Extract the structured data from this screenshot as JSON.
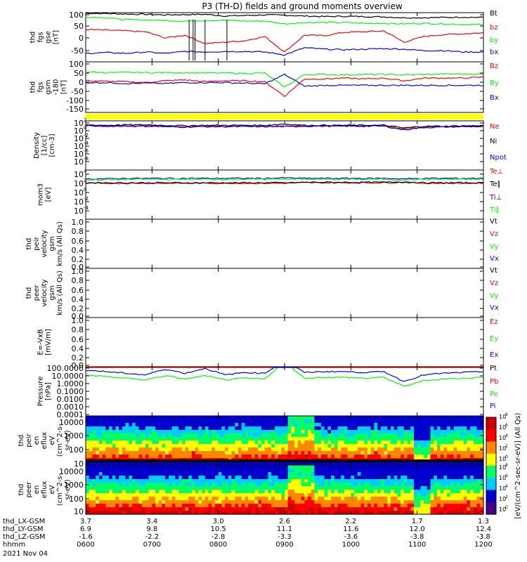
{
  "title": "P3 (TH-D) fields and ground moments overview",
  "colors": {
    "black": "#000000",
    "red": "#ff0000",
    "green": "#00ff00",
    "blue": "#0000ff",
    "yellow": "#ffff00"
  },
  "xaxis": {
    "ticks": [
      {
        "lx": "3.7",
        "ly": "6.9",
        "lz": "-1.6",
        "hhmm": "0600"
      },
      {
        "lx": "3.4",
        "ly": "9.8",
        "lz": "-2.2",
        "hhmm": "0700"
      },
      {
        "lx": "3.0",
        "ly": "10.5",
        "lz": "-2.8",
        "hhmm": "0800"
      },
      {
        "lx": "2.6",
        "ly": "11.1",
        "lz": "-3.3",
        "hhmm": "0900"
      },
      {
        "lx": "2.2",
        "ly": "11.6",
        "lz": "-3.6",
        "hhmm": "1000"
      },
      {
        "lx": "1.7",
        "ly": "12.0",
        "lz": "-3.8",
        "hhmm": "1100"
      },
      {
        "lx": "1.3",
        "ly": "12.4",
        "lz": "-3.8",
        "hhmm": "1200"
      }
    ],
    "row_labels": [
      "thd_LX-GSM",
      "thd_LY-GSM",
      "thd_LZ-GSM",
      "hhmm"
    ],
    "date": "2021 Nov 04"
  },
  "chart_data": [
    {
      "type": "line",
      "id": "fgs",
      "ylabel": [
        "thd",
        "fgs",
        "gse",
        "[nT]"
      ],
      "ticks": [
        "100",
        "50",
        "0",
        "-50"
      ],
      "ylim": [
        -75,
        100
      ],
      "series": [
        {
          "name": "Bt",
          "color": "black",
          "values": [
            98,
            97,
            95,
            94,
            92,
            93,
            94,
            88,
            90,
            92,
            91,
            88,
            86,
            87,
            86,
            85,
            82,
            82,
            83,
            84,
            83
          ]
        },
        {
          "name": "bz",
          "color": "red",
          "values": [
            40,
            38,
            35,
            32,
            10,
            20,
            -10,
            -5,
            0,
            15,
            -40,
            20,
            18,
            30,
            32,
            35,
            -5,
            15,
            22,
            25,
            28
          ]
        },
        {
          "name": "by",
          "color": "green",
          "values": [
            85,
            82,
            75,
            74,
            72,
            70,
            72,
            73,
            70,
            70,
            60,
            65,
            65,
            65,
            62,
            62,
            60,
            62,
            60,
            58,
            58
          ]
        },
        {
          "name": "bx",
          "color": "blue",
          "values": [
            -45,
            -42,
            -45,
            -40,
            -45,
            -38,
            -40,
            -38,
            -38,
            -40,
            -50,
            -25,
            -30,
            -32,
            -30,
            -28,
            -30,
            -35,
            -35,
            -40,
            -40
          ]
        }
      ],
      "spikes": [
        0.26,
        0.27,
        0.275,
        0.3,
        0.355
      ]
    },
    {
      "type": "line",
      "id": "fgs_gsm",
      "ylabel": [
        "thd",
        "fgs",
        "gsm",
        "-180"
      ],
      "unit": "[nT]",
      "ticks": [
        "100",
        "50",
        "0",
        "-50",
        "-100",
        "-150"
      ],
      "ylim": [
        -180,
        100
      ],
      "series": [
        {
          "name": "Bz",
          "color": "red",
          "values": [
            -5,
            -8,
            -10,
            -15,
            -5,
            0,
            -10,
            -5,
            -5,
            -10,
            -90,
            5,
            5,
            10,
            5,
            10,
            -5,
            10,
            10,
            10,
            15
          ]
        },
        {
          "name": "By",
          "color": "green",
          "values": [
            45,
            40,
            42,
            40,
            40,
            40,
            38,
            38,
            36,
            38,
            -40,
            30,
            30,
            28,
            30,
            30,
            28,
            30,
            32,
            32,
            32
          ]
        },
        {
          "name": "Bx",
          "color": "blue",
          "values": [
            -15,
            -15,
            -20,
            -18,
            -20,
            -15,
            -15,
            -15,
            -18,
            -22,
            30,
            -35,
            -30,
            -30,
            -30,
            -30,
            -30,
            -30,
            -30,
            -30,
            -30
          ]
        }
      ]
    },
    {
      "type": "line",
      "id": "density",
      "ylabel": [
        "Density",
        "[1/cc]",
        "[cm-3]"
      ],
      "ticks": [
        "10",
        "10",
        "10",
        "10",
        "10",
        "10"
      ],
      "tick_exp": [
        "2",
        "0",
        "-2",
        "-4",
        "-6",
        "-8"
      ],
      "series": [
        {
          "name": "Ne",
          "color": "red",
          "values": [
            2,
            1.8,
            1.9,
            1.9,
            1.8,
            1.7,
            1.8,
            1.8,
            1.8,
            1.8,
            1.8,
            1.9,
            1.9,
            1.9,
            1.9,
            1.9,
            1.2,
            1.6,
            1.7,
            1.8,
            1.8
          ]
        },
        {
          "name": "Ni",
          "color": "black",
          "values": [
            2.1,
            2,
            2.1,
            2.1,
            2,
            1.9,
            2,
            2,
            2,
            2,
            2.3,
            2,
            2,
            2,
            2,
            2,
            1.4,
            1.8,
            1.8,
            1.9,
            1.9
          ]
        },
        {
          "name": "Npot",
          "color": "blue",
          "values": [
            1.9,
            1.8,
            1.8,
            1.8,
            1.7,
            1.6,
            1.7,
            1.7,
            1.7,
            1.7,
            1.7,
            1.8,
            1.8,
            1.8,
            1.8,
            1.8,
            1,
            1.5,
            1.6,
            1.7,
            1.7
          ]
        }
      ]
    },
    {
      "type": "line",
      "id": "temp",
      "ylabel": [
        "mom3",
        "[eV]"
      ],
      "ticks": [
        "10",
        "10",
        "10",
        "10",
        "10"
      ],
      "tick_exp": [
        "4",
        "2",
        "0",
        "-2",
        "-4"
      ],
      "series": [
        {
          "name": "Te⊥",
          "color": "red",
          "values": [
            2.3,
            2.3,
            2.3,
            2.3,
            2.3,
            2.3,
            2.3,
            2.3,
            2.3,
            2.3,
            2.3,
            2.4,
            2.4,
            2.4,
            2.4,
            2.4,
            2.5,
            2.3,
            2.3,
            2.3,
            2.3
          ]
        },
        {
          "name": "Te∥",
          "color": "black",
          "values": [
            2.4,
            2.4,
            2.4,
            2.4,
            2.4,
            2.4,
            2.4,
            2.4,
            2.4,
            2.4,
            2.4,
            2.5,
            2.5,
            2.5,
            2.5,
            2.5,
            2.6,
            2.4,
            2.4,
            2.4,
            2.4
          ]
        },
        {
          "name": "Ti⊥",
          "color": "blue",
          "values": [
            3.2,
            3.2,
            3.3,
            3.3,
            3.3,
            3.3,
            3.3,
            3.3,
            3.3,
            3.3,
            3.4,
            3.3,
            3.3,
            3.3,
            3.3,
            3.3,
            3.2,
            3.3,
            3.3,
            3.3,
            3.3
          ]
        },
        {
          "name": "Ti∥",
          "color": "green",
          "values": [
            3.0,
            3.0,
            3.1,
            3.1,
            3.1,
            3.1,
            3.1,
            3.1,
            3.1,
            3.1,
            3.2,
            3.1,
            3.1,
            3.1,
            3.1,
            3.1,
            3.0,
            3.1,
            3.1,
            3.1,
            3.1
          ]
        }
      ]
    },
    {
      "type": "line",
      "id": "peir_vel",
      "ylabel": [
        "thd",
        "peir",
        "velocity",
        "gsm",
        "km/s (All Qs)"
      ],
      "ticks": [
        "1.0",
        "0.8",
        "0.6",
        "0.4",
        "0.2",
        "0.0"
      ],
      "series": [
        {
          "name": "Vt",
          "color": "black"
        },
        {
          "name": "Vz",
          "color": "red"
        },
        {
          "name": "Vy",
          "color": "green"
        },
        {
          "name": "Vx",
          "color": "blue"
        }
      ]
    },
    {
      "type": "line",
      "id": "peer_vel",
      "ylabel": [
        "thd",
        "peer",
        "velocity",
        "gsm",
        "km/s (All Qs)"
      ],
      "ticks": [
        "1.0",
        "0.8",
        "0.6",
        "0.4",
        "0.2",
        "0.0"
      ],
      "series": [
        {
          "name": "Vt",
          "color": "black"
        },
        {
          "name": "Vz",
          "color": "red"
        },
        {
          "name": "Vy",
          "color": "green"
        },
        {
          "name": "Vx",
          "color": "blue"
        }
      ]
    },
    {
      "type": "line",
      "id": "efield",
      "ylabel": [
        "E=-VxB",
        "[mV/m]"
      ],
      "ticks": [
        "1.0",
        "0.8",
        "0.6",
        "0.4",
        "0.2",
        "0.0"
      ],
      "series": [
        {
          "name": "Ez",
          "color": "red"
        },
        {
          "name": "Ey",
          "color": "green"
        },
        {
          "name": "Ex",
          "color": "blue"
        }
      ]
    },
    {
      "type": "line",
      "id": "pressure",
      "ylabel": [
        "Pressure",
        "[nPa]"
      ],
      "ticks": [
        "100.0000",
        "10.0000",
        "1.0000",
        "0.1000",
        "0.0100",
        "0.0010",
        "0.0001"
      ],
      "series": [
        {
          "name": "Pt",
          "color": "black",
          "values": [
            2.5,
            2.4,
            2.4,
            2.4,
            2.3,
            2.3,
            2.3,
            2.3,
            2.3,
            2.3,
            2.9,
            2.3,
            2.3,
            2.3,
            2.3,
            2.3,
            2.2,
            2.2,
            2.2,
            2.2,
            2.2
          ]
        },
        {
          "name": "Pb",
          "color": "red",
          "values": [
            2.4,
            2.3,
            2.3,
            2.2,
            2.2,
            2.2,
            2.2,
            2.2,
            2.2,
            2.2,
            2.5,
            2.2,
            2.2,
            2.2,
            2.2,
            2.2,
            2.1,
            2.1,
            2.1,
            2.1,
            2.1
          ]
        },
        {
          "name": "Pe",
          "color": "green",
          "values": [
            1.0,
            0.8,
            0.6,
            0.4,
            0.9,
            0.5,
            0.9,
            0.4,
            0.6,
            0.5,
            2.6,
            0.6,
            0.7,
            0.7,
            0.6,
            0.7,
            -0.4,
            0.3,
            0.5,
            0.6,
            0.7
          ]
        },
        {
          "name": "Pi",
          "color": "blue",
          "values": [
            1.6,
            1.4,
            1.2,
            1.0,
            1.7,
            1.2,
            1.8,
            1.0,
            1.3,
            1.2,
            2.7,
            1.3,
            1.4,
            1.4,
            1.3,
            1.4,
            0.2,
            1.0,
            1.2,
            1.3,
            1.4
          ]
        }
      ]
    },
    {
      "type": "heatmap",
      "id": "peir_spec",
      "ylabel": [
        "thd",
        "peir",
        "en",
        "eflux",
        "eV",
        "(cm^2-s-",
        "sr-eV)"
      ],
      "ticks": [
        "10000",
        "1000",
        "100",
        "10"
      ]
    },
    {
      "type": "heatmap",
      "id": "peer_spec",
      "ylabel": [
        "thd",
        "peer",
        "en",
        "eflux",
        "eV",
        "(cm^2-s-",
        "sr-eV)"
      ],
      "ticks": [
        "10000",
        "1000",
        "100",
        "10"
      ]
    }
  ],
  "colorbar": {
    "label": "[eV/(cm^2-sec-sr-eV)] (All Qs)",
    "ticks": [
      "10",
      "10",
      "10",
      "10",
      "10",
      "10",
      "10",
      "10",
      "10",
      "10"
    ],
    "tick_exp": [
      "6",
      "6",
      "4",
      "2",
      "0",
      "8",
      "6",
      "4",
      "2",
      "0"
    ]
  }
}
